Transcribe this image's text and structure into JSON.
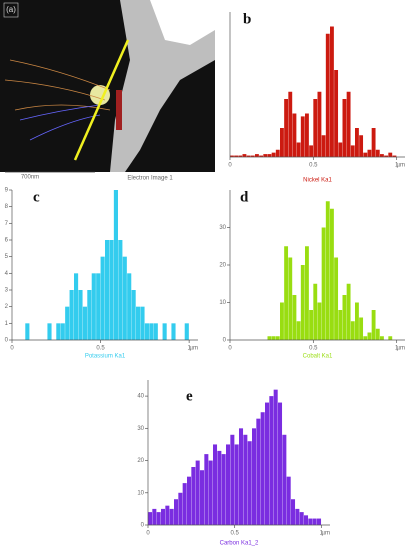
{
  "image_panel": {
    "label": "(a)",
    "scale": "700nm",
    "caption": "Electron Image 1"
  },
  "chart_data": [
    {
      "type": "histogram",
      "annotation": "b",
      "xlabel": "Nickel Ka1",
      "x_unit": "µm",
      "color": "#cc1a10",
      "bins": [
        0,
        0.025,
        0.05,
        0.075,
        0.1,
        0.125,
        0.15,
        0.175,
        0.2,
        0.225,
        0.25,
        0.275,
        0.3,
        0.325,
        0.35,
        0.375,
        0.4,
        0.425,
        0.45,
        0.475,
        0.5,
        0.525,
        0.55,
        0.575,
        0.6,
        0.625,
        0.65,
        0.675,
        0.7,
        0.725,
        0.75,
        0.775,
        0.8,
        0.825,
        0.85,
        0.875,
        0.9,
        0.925,
        0.95,
        0.975,
        1
      ],
      "values": [
        1,
        1,
        1,
        2,
        1,
        1,
        2,
        1,
        2,
        2,
        3,
        5,
        20,
        40,
        45,
        30,
        10,
        28,
        30,
        8,
        40,
        45,
        15,
        85,
        90,
        60,
        10,
        40,
        45,
        8,
        20,
        15,
        3,
        5,
        20,
        5,
        2,
        1,
        3,
        1
      ],
      "xlim": [
        0,
        1.05
      ],
      "xticks": [
        0,
        0.5,
        1
      ],
      "ylim": [
        0,
        100
      ]
    },
    {
      "type": "histogram",
      "annotation": "c",
      "xlabel": "Potassium Ka1",
      "x_unit": "µm",
      "color": "#33ccee",
      "bins": [
        0,
        0.025,
        0.05,
        0.075,
        0.1,
        0.125,
        0.15,
        0.175,
        0.2,
        0.225,
        0.25,
        0.275,
        0.3,
        0.325,
        0.35,
        0.375,
        0.4,
        0.425,
        0.45,
        0.475,
        0.5,
        0.525,
        0.55,
        0.575,
        0.6,
        0.625,
        0.65,
        0.675,
        0.7,
        0.725,
        0.75,
        0.775,
        0.8,
        0.825,
        0.85,
        0.875,
        0.9,
        0.925,
        0.95,
        0.975,
        1
      ],
      "values": [
        0,
        0,
        0,
        1,
        0,
        0,
        0,
        0,
        1,
        0,
        1,
        1,
        2,
        3,
        4,
        3,
        2,
        3,
        4,
        4,
        5,
        6,
        6,
        9,
        6,
        5,
        4,
        3,
        2,
        2,
        1,
        1,
        1,
        0,
        1,
        0,
        1,
        0,
        0,
        1
      ],
      "xlim": [
        0,
        1.05
      ],
      "xticks": [
        0,
        0.5,
        1
      ],
      "ylim": [
        0,
        9
      ],
      "yticks": [
        0,
        1,
        2,
        3,
        4,
        5,
        6,
        7,
        8,
        9
      ]
    },
    {
      "type": "histogram",
      "annotation": "d",
      "xlabel": "Cobalt Ka1",
      "x_unit": "µm",
      "color": "#99dd11",
      "bins": [
        0,
        0.025,
        0.05,
        0.075,
        0.1,
        0.125,
        0.15,
        0.175,
        0.2,
        0.225,
        0.25,
        0.275,
        0.3,
        0.325,
        0.35,
        0.375,
        0.4,
        0.425,
        0.45,
        0.475,
        0.5,
        0.525,
        0.55,
        0.575,
        0.6,
        0.625,
        0.65,
        0.675,
        0.7,
        0.725,
        0.75,
        0.775,
        0.8,
        0.825,
        0.85,
        0.875,
        0.9,
        0.925,
        0.95,
        0.975,
        1
      ],
      "values": [
        0,
        0,
        0,
        0,
        0,
        0,
        0,
        0,
        0,
        1,
        1,
        1,
        10,
        25,
        22,
        12,
        5,
        20,
        25,
        8,
        15,
        10,
        30,
        37,
        35,
        22,
        8,
        12,
        15,
        5,
        10,
        6,
        1,
        2,
        8,
        3,
        1,
        0,
        1,
        0
      ],
      "xlim": [
        0,
        1.05
      ],
      "xticks": [
        0,
        0.5,
        1
      ],
      "ylim": [
        0,
        40
      ],
      "yticks": [
        0,
        10,
        20,
        30
      ]
    },
    {
      "type": "histogram",
      "annotation": "e",
      "xlabel": "Carbon Ka1_2",
      "x_unit": "µm",
      "color": "#7a2de0",
      "bins": [
        0,
        0.025,
        0.05,
        0.075,
        0.1,
        0.125,
        0.15,
        0.175,
        0.2,
        0.225,
        0.25,
        0.275,
        0.3,
        0.325,
        0.35,
        0.375,
        0.4,
        0.425,
        0.45,
        0.475,
        0.5,
        0.525,
        0.55,
        0.575,
        0.6,
        0.625,
        0.65,
        0.675,
        0.7,
        0.725,
        0.75,
        0.775,
        0.8,
        0.825,
        0.85,
        0.875,
        0.9,
        0.925,
        0.95,
        0.975,
        1
      ],
      "values": [
        4,
        5,
        4,
        5,
        6,
        5,
        8,
        10,
        13,
        15,
        18,
        20,
        17,
        22,
        20,
        25,
        23,
        22,
        25,
        28,
        25,
        30,
        28,
        26,
        30,
        33,
        35,
        38,
        40,
        42,
        38,
        28,
        15,
        8,
        5,
        4,
        3,
        2,
        2,
        2
      ],
      "xlim": [
        0,
        1.05
      ],
      "xticks": [
        0,
        0.5,
        1
      ],
      "ylim": [
        0,
        45
      ],
      "yticks": [
        0,
        10,
        20,
        30,
        40
      ]
    }
  ]
}
